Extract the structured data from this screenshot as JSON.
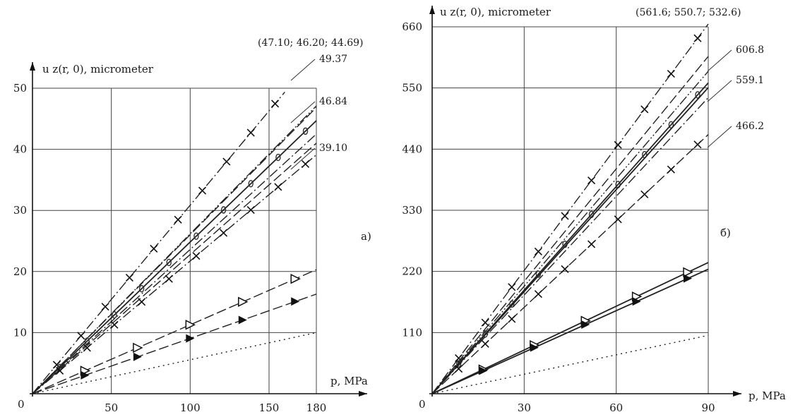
{
  "chart_data": [
    {
      "type": "line",
      "panel_label": "a)",
      "ylabel": "u z(r, 0), micrometer",
      "xlabel": "p, MPa",
      "origin_label": "0",
      "xlim": [
        0,
        180
      ],
      "ylim": [
        0,
        50
      ],
      "xticks": [
        "50",
        "100",
        "150",
        "180"
      ],
      "yticks": [
        "10",
        "20",
        "30",
        "40",
        "50"
      ],
      "grid": true,
      "top_annotation": "(47.10; 46.20; 44.69)",
      "end_labels": [
        "49.37",
        "46.84",
        "39.10"
      ],
      "series": [
        {
          "style": "dashdot",
          "marker": "cross",
          "x": [
            0,
            160
          ],
          "y": [
            0,
            49.37
          ]
        },
        {
          "style": "dashdotdot",
          "marker": "none",
          "x": [
            0,
            180
          ],
          "y": [
            0,
            47.1
          ]
        },
        {
          "style": "dashed",
          "marker": "none",
          "x": [
            0,
            180
          ],
          "y": [
            0,
            46.84
          ]
        },
        {
          "style": "solid",
          "marker": "ring",
          "x": [
            0,
            180
          ],
          "y": [
            0,
            44.69
          ]
        },
        {
          "style": "dashdot",
          "marker": "none",
          "x": [
            0,
            180
          ],
          "y": [
            0,
            42.5
          ]
        },
        {
          "style": "dashed",
          "marker": "none",
          "x": [
            0,
            180
          ],
          "y": [
            0,
            41.0
          ]
        },
        {
          "style": "dashdot",
          "marker": "cross",
          "x": [
            0,
            180
          ],
          "y": [
            0,
            39.1
          ]
        },
        {
          "style": "dashed",
          "marker": "open-triangle",
          "x": [
            0,
            180
          ],
          "y": [
            0,
            20.3
          ]
        },
        {
          "style": "dashed",
          "marker": "filled-triangle",
          "x": [
            0,
            180
          ],
          "y": [
            0,
            16.3
          ]
        },
        {
          "style": "dotted",
          "marker": "none",
          "x": [
            0,
            180
          ],
          "y": [
            0,
            10.0
          ]
        }
      ]
    },
    {
      "type": "line",
      "panel_label": "б)",
      "ylabel": "u z(r, 0), micrometer",
      "xlabel": "p, MPa",
      "origin_label": "0",
      "xlim": [
        0,
        90
      ],
      "ylim": [
        0,
        660
      ],
      "xticks": [
        "30",
        "60",
        "90"
      ],
      "yticks": [
        "110",
        "220",
        "330",
        "440",
        "550",
        "660"
      ],
      "grid": true,
      "top_annotation": "(561.6; 550.7; 532.6)",
      "end_labels": [
        "606.8",
        "559.1",
        "466.2"
      ],
      "series": [
        {
          "style": "dashdot",
          "marker": "cross",
          "x": [
            0,
            90
          ],
          "y": [
            0,
            665
          ]
        },
        {
          "style": "dashed",
          "marker": "none",
          "x": [
            0,
            90
          ],
          "y": [
            0,
            606.8
          ]
        },
        {
          "style": "dashdotdot",
          "marker": "none",
          "x": [
            0,
            90
          ],
          "y": [
            0,
            580
          ]
        },
        {
          "style": "solid",
          "marker": "ring",
          "x": [
            0,
            90
          ],
          "y": [
            0,
            559.1
          ]
        },
        {
          "style": "solid",
          "marker": "none",
          "x": [
            0,
            90
          ],
          "y": [
            0,
            550.7
          ]
        },
        {
          "style": "dashdot",
          "marker": "none",
          "x": [
            0,
            90
          ],
          "y": [
            0,
            532.6
          ]
        },
        {
          "style": "dashed",
          "marker": "cross",
          "x": [
            0,
            90
          ],
          "y": [
            0,
            466.2
          ]
        },
        {
          "style": "solid",
          "marker": "open-triangle",
          "x": [
            0,
            90
          ],
          "y": [
            0,
            236
          ]
        },
        {
          "style": "solid",
          "marker": "filled-triangle",
          "x": [
            0,
            90
          ],
          "y": [
            0,
            224
          ]
        },
        {
          "style": "dotted",
          "marker": "none",
          "x": [
            0,
            90
          ],
          "y": [
            0,
            105
          ]
        }
      ]
    }
  ]
}
